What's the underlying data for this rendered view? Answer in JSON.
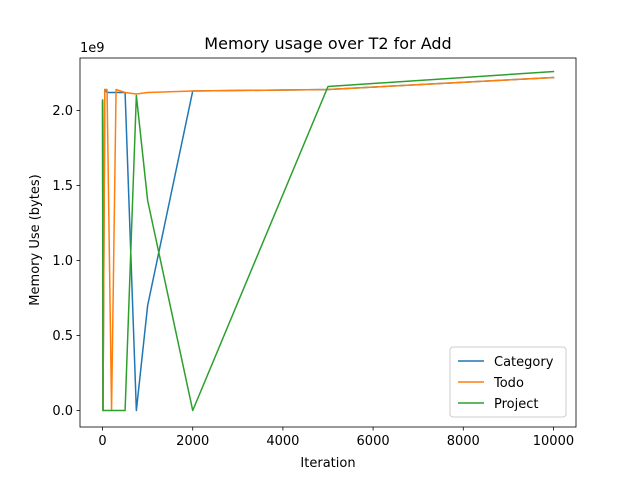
{
  "chart_data": {
    "type": "line",
    "title": "Memory usage over T2 for Add",
    "xlabel": "Iteration",
    "ylabel": "Memory Use (bytes)",
    "y_offset_label": "1e9",
    "xlim": [
      -500,
      10500
    ],
    "ylim": [
      -0.11,
      2.35
    ],
    "xticks": [
      0,
      2000,
      4000,
      6000,
      8000,
      10000
    ],
    "yticks": [
      0.0,
      0.5,
      1.0,
      1.5,
      2.0
    ],
    "xtick_labels": [
      "0",
      "2000",
      "4000",
      "6000",
      "8000",
      "10000"
    ],
    "ytick_labels": [
      "0.0",
      "0.5",
      "1.0",
      "1.5",
      "2.0"
    ],
    "grid": false,
    "legend_position": "lower-right",
    "series": [
      {
        "name": "Category",
        "color": "#1f77b4",
        "x": [
          1,
          10,
          50,
          100,
          200,
          300,
          500,
          750,
          1000,
          2000,
          5000,
          10000
        ],
        "y": [
          2.06,
          0.0,
          2.14,
          2.12,
          2.12,
          2.12,
          2.12,
          0.0,
          0.7,
          2.13,
          2.14,
          2.22
        ]
      },
      {
        "name": "Todo",
        "color": "#ff7f0e",
        "x": [
          1,
          10,
          50,
          100,
          200,
          300,
          500,
          750,
          1000,
          2000,
          5000,
          10000
        ],
        "y": [
          2.05,
          0.0,
          2.14,
          2.14,
          0.0,
          2.14,
          2.12,
          2.11,
          2.12,
          2.13,
          2.14,
          2.22
        ]
      },
      {
        "name": "Project",
        "color": "#2ca02c",
        "x": [
          1,
          10,
          50,
          100,
          200,
          300,
          500,
          750,
          1000,
          2000,
          5000,
          10000
        ],
        "y": [
          2.07,
          0.0,
          0.0,
          0.0,
          0.0,
          0.0,
          0.0,
          2.1,
          1.4,
          0.0,
          2.16,
          2.26
        ]
      }
    ]
  }
}
